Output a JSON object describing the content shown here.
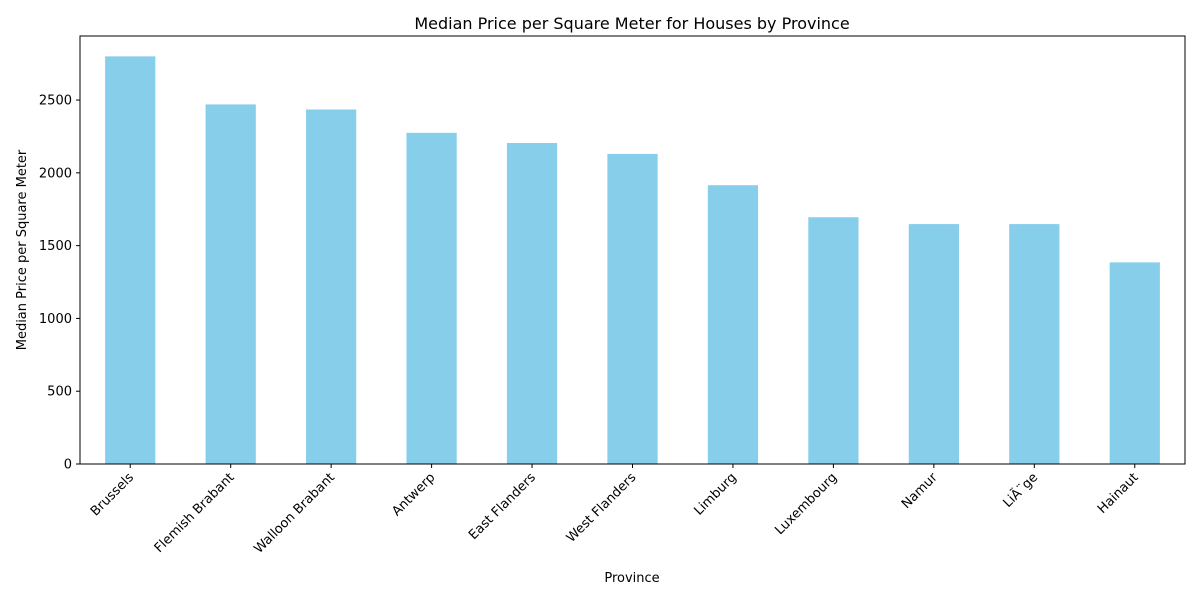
{
  "chart_data": {
    "type": "bar",
    "title": "Median Price per Square Meter for Houses by Province",
    "xlabel": "Province",
    "ylabel": "Median Price per Square Meter",
    "categories": [
      "Brussels",
      "Flemish Brabant",
      "Walloon Brabant",
      "Antwerp",
      "East Flanders",
      "West Flanders",
      "Limburg",
      "Luxembourg",
      "Namur",
      "LiÃ¨ge",
      "Hainaut"
    ],
    "values": [
      2800,
      2470,
      2435,
      2275,
      2205,
      2130,
      1915,
      1695,
      1648,
      1648,
      1385
    ],
    "ylim": [
      0,
      2940
    ],
    "yticks": [
      0,
      500,
      1000,
      1500,
      2000,
      2500
    ],
    "bar_color": "#87ceeb",
    "grid": false,
    "legend": "none"
  }
}
